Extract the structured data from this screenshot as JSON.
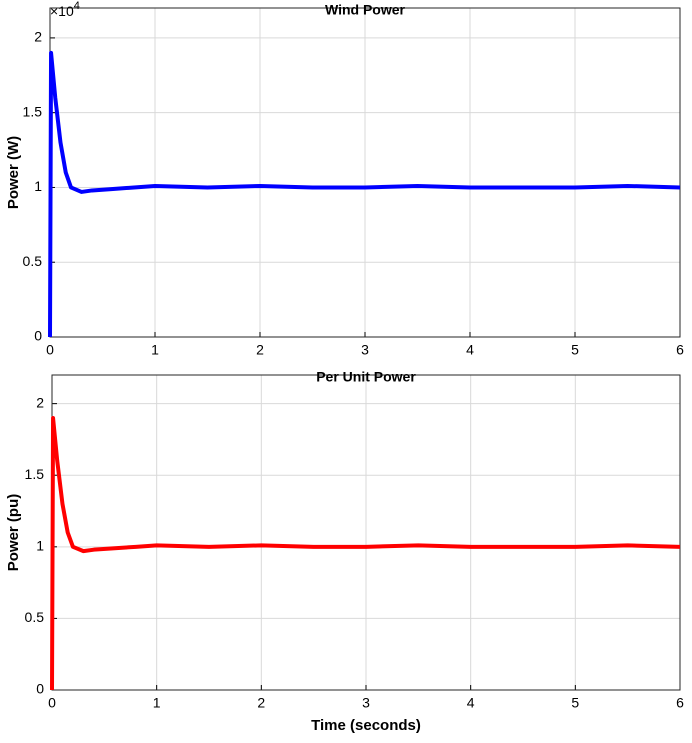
{
  "chart_data": [
    {
      "type": "line",
      "title": "Wind Power",
      "y_label": "Power (W)",
      "y_multiplier_base": "×10",
      "y_multiplier_power": "4",
      "x": [
        0,
        0.01,
        0.05,
        0.1,
        0.15,
        0.2,
        0.3,
        0.4,
        0.6,
        0.8,
        1,
        1.5,
        2,
        2.5,
        3,
        3.5,
        4,
        4.5,
        5,
        5.5,
        6
      ],
      "series": [
        {
          "color": "#0000ff",
          "values": [
            0,
            19000,
            16000,
            13000,
            11000,
            10000,
            9700,
            9800,
            9900,
            10000,
            10100,
            10000,
            10100,
            10000,
            10000,
            10100,
            10000,
            10000,
            10000,
            10100,
            10000
          ]
        }
      ],
      "xlim": [
        0,
        6
      ],
      "xticks": [
        0,
        1,
        2,
        3,
        4,
        5,
        6
      ],
      "ylim": [
        0,
        22000
      ],
      "yticks": [
        {
          "value": 0,
          "label": "0"
        },
        {
          "value": 5000,
          "label": "0.5"
        },
        {
          "value": 10000,
          "label": "1"
        },
        {
          "value": 15000,
          "label": "1.5"
        },
        {
          "value": 20000,
          "label": "2"
        }
      ],
      "grid": true
    },
    {
      "type": "line",
      "title": "Per Unit Power",
      "y_label": "Power (pu)",
      "x_label": "Time (seconds)",
      "x": [
        0,
        0.01,
        0.05,
        0.1,
        0.15,
        0.2,
        0.3,
        0.4,
        0.6,
        0.8,
        1,
        1.5,
        2,
        2.5,
        3,
        3.5,
        4,
        4.5,
        5,
        5.5,
        6
      ],
      "series": [
        {
          "color": "#ff0000",
          "values": [
            0,
            1.9,
            1.6,
            1.3,
            1.1,
            1.0,
            0.97,
            0.98,
            0.99,
            1.0,
            1.01,
            1.0,
            1.01,
            1.0,
            1.0,
            1.01,
            1.0,
            1.0,
            1.0,
            1.01,
            1.0
          ]
        }
      ],
      "xlim": [
        0,
        6
      ],
      "xticks": [
        0,
        1,
        2,
        3,
        4,
        5,
        6
      ],
      "ylim": [
        0,
        2.2
      ],
      "yticks": [
        0,
        0.5,
        1,
        1.5,
        2
      ],
      "grid": true
    }
  ]
}
